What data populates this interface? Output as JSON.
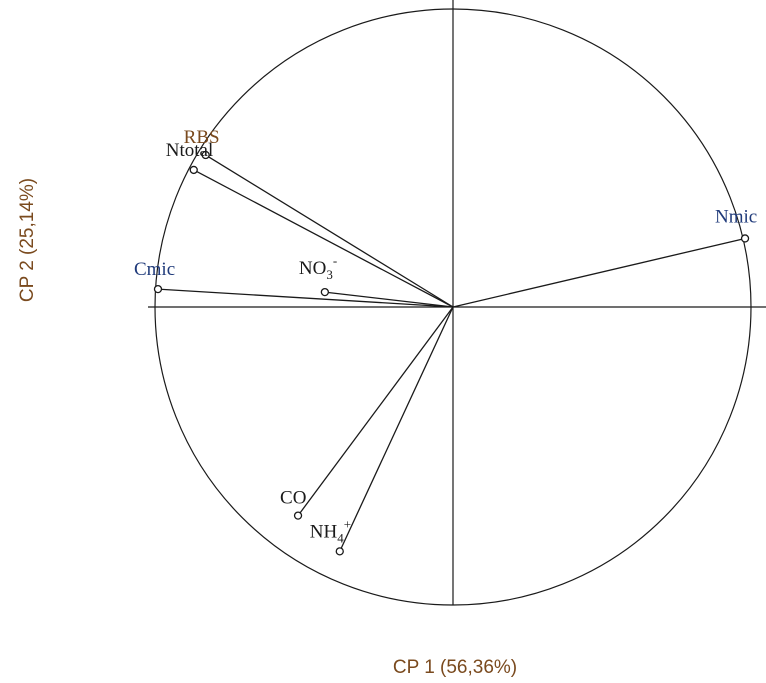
{
  "chart_data": {
    "type": "scatter",
    "subtype": "pca-correlation-circle",
    "title": "",
    "xlabel": "CP 1 (56,36%)",
    "ylabel": "CP 2 (25,14%)",
    "xlim": [
      -1,
      1
    ],
    "ylim": [
      -1,
      1
    ],
    "grid": false,
    "legend": "none",
    "unit_circle": true,
    "colors": {
      "line": "#1a1a1a",
      "axis_title": "#7a4a1e",
      "label_default": "#1a1a1a",
      "label_blue": "#1f3a7a",
      "label_brown": "#7a4a1e"
    },
    "variables": [
      {
        "name": "RBS",
        "base": "RBS",
        "sub": "",
        "sup": "",
        "x": -0.83,
        "y": 0.51,
        "color": "#7a4a1e"
      },
      {
        "name": "Ntotal",
        "base": "Ntotal",
        "sub": "",
        "sup": "",
        "x": -0.87,
        "y": 0.46,
        "color": "#1a1a1a"
      },
      {
        "name": "Nmic",
        "base": "Nmic",
        "sub": "",
        "sup": "",
        "x": 0.98,
        "y": 0.23,
        "color": "#1f3a7a"
      },
      {
        "name": "Cmic",
        "base": "Cmic",
        "sub": "",
        "sup": "",
        "x": -0.99,
        "y": 0.06,
        "color": "#1f3a7a"
      },
      {
        "name": "NO3-",
        "base": "NO",
        "sub": "3",
        "sup": "-",
        "x": -0.43,
        "y": 0.05,
        "color": "#1a1a1a"
      },
      {
        "name": "CO",
        "base": "CO",
        "sub": "",
        "sup": "",
        "x": -0.52,
        "y": -0.7,
        "color": "#1a1a1a"
      },
      {
        "name": "NH4+",
        "base": "NH",
        "sub": "4",
        "sup": "+",
        "x": -0.38,
        "y": -0.82,
        "color": "#1a1a1a"
      }
    ]
  }
}
